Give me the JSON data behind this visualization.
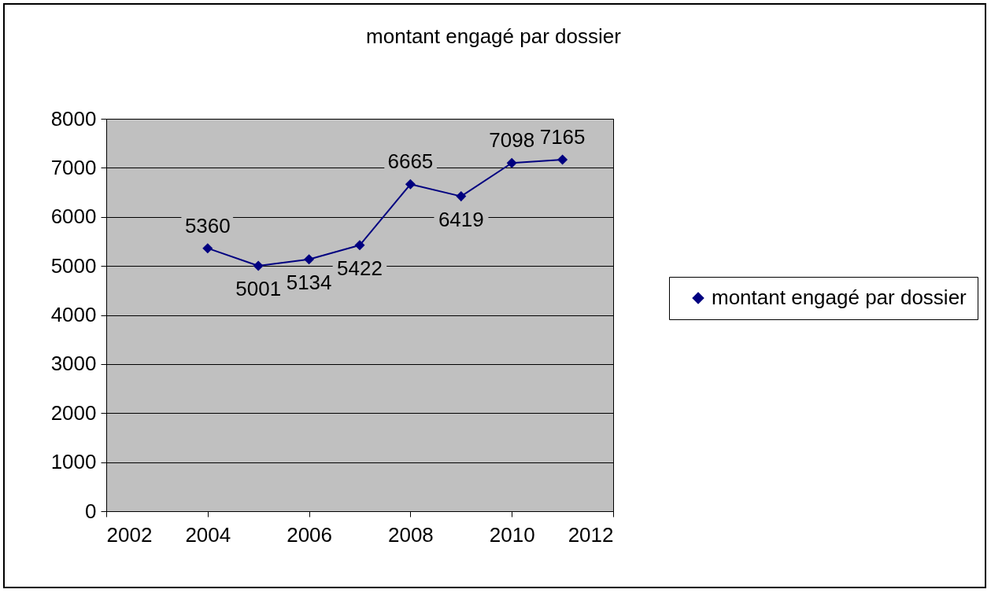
{
  "chart_data": {
    "type": "line",
    "title": "montant engagé par dossier",
    "x": [
      2004,
      2005,
      2006,
      2007,
      2008,
      2009,
      2010,
      2011
    ],
    "series": [
      {
        "name": "montant engagé par dossier",
        "color": "#000080",
        "values": [
          5360,
          5001,
          5134,
          5422,
          6665,
          6419,
          7098,
          7165
        ]
      }
    ],
    "xlim": [
      2002,
      2012
    ],
    "xticks": [
      2002,
      2004,
      2006,
      2008,
      2010,
      2012
    ],
    "ylim": [
      0,
      8000
    ],
    "yticks": [
      0,
      1000,
      2000,
      3000,
      4000,
      5000,
      6000,
      7000,
      8000
    ],
    "grid": "y",
    "legend": "right",
    "marker": "diamond",
    "line_style": "solid",
    "data_labels": true
  }
}
